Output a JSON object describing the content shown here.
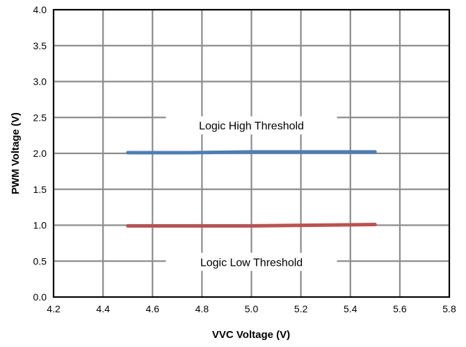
{
  "chart_data": {
    "type": "line",
    "title": "",
    "xlabel": "VVC Voltage (V)",
    "ylabel": "PWM Voltage (V)",
    "xlim": [
      4.2,
      5.8
    ],
    "ylim": [
      0.0,
      4.0
    ],
    "x_ticks": [
      4.2,
      4.4,
      4.6,
      4.8,
      5.0,
      5.2,
      5.4,
      5.6,
      5.8
    ],
    "y_ticks": [
      0.0,
      0.5,
      1.0,
      1.5,
      2.0,
      2.5,
      3.0,
      3.5,
      4.0
    ],
    "x_tick_labels": [
      "4.2",
      "4.4",
      "4.6",
      "4.8",
      "5.0",
      "5.2",
      "5.4",
      "5.6",
      "5.8"
    ],
    "y_tick_labels": [
      "0.0",
      "0.5",
      "1.0",
      "1.5",
      "2.0",
      "2.5",
      "3.0",
      "3.5",
      "4.0"
    ],
    "grid": true,
    "series": [
      {
        "color": "#4a7ebb",
        "x": [
          4.5,
          4.75,
          5.0,
          5.25,
          5.5
        ],
        "y": [
          2.01,
          2.01,
          2.02,
          2.02,
          2.02
        ]
      },
      {
        "color": "#c0504d",
        "x": [
          4.5,
          4.75,
          5.0,
          5.25,
          5.5
        ],
        "y": [
          0.99,
          0.99,
          0.99,
          1.0,
          1.01
        ]
      }
    ],
    "annotations": [
      {
        "text": "Logic High Threshold",
        "x": 5.0,
        "y": 2.39
      },
      {
        "text": "Logic Low Threshold",
        "x": 5.0,
        "y": 0.49
      }
    ]
  }
}
